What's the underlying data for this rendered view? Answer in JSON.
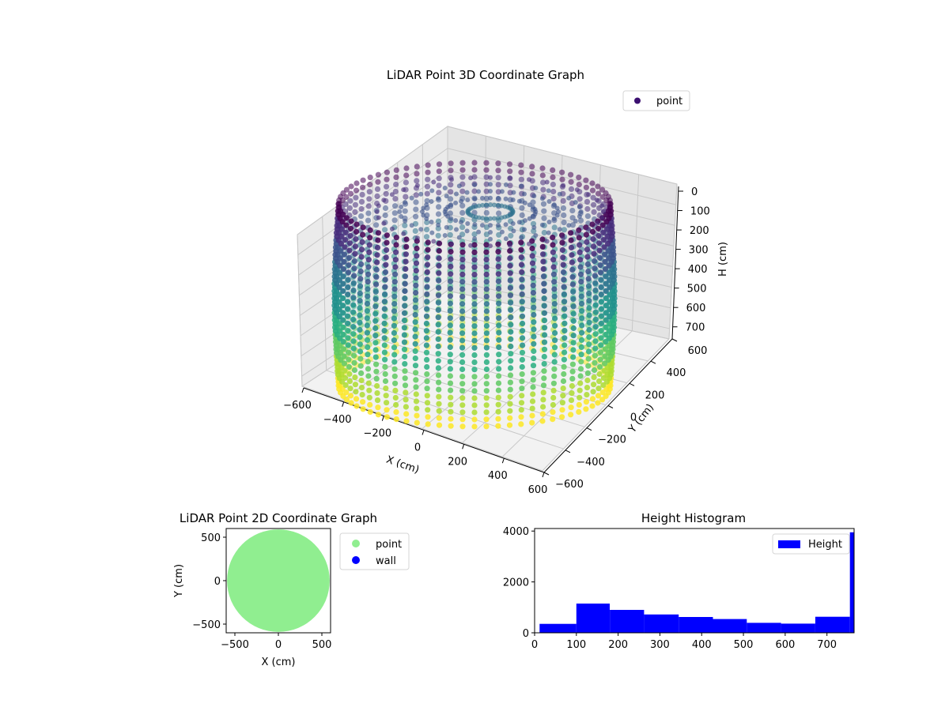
{
  "chart_data": [
    {
      "type": "scatter",
      "title": "LiDAR Point 3D Coordinate Graph",
      "xlabel": "X (cm)",
      "ylabel": "Y (cm)",
      "zlabel": "H (cm)",
      "xlim": [
        -600,
        600
      ],
      "ylim": [
        -600,
        600
      ],
      "zlim": [
        0,
        750
      ],
      "z_inverted": true,
      "x_ticks": [
        "−600",
        "−400",
        "−200",
        "0",
        "200",
        "400",
        "600"
      ],
      "y_ticks": [
        "−600",
        "−400",
        "−200",
        "0",
        "200",
        "400",
        "600"
      ],
      "z_ticks": [
        "0",
        "100",
        "200",
        "300",
        "400",
        "500",
        "600",
        "700"
      ],
      "colormap": "viridis",
      "legend": {
        "position": "top-right",
        "entries": [
          {
            "name": "point",
            "color": "#3b0f70"
          }
        ]
      },
      "series": [
        {
          "name": "point",
          "shape": "cylindrical wall",
          "radius": 600,
          "height_range": [
            0,
            750
          ]
        }
      ]
    },
    {
      "type": "scatter",
      "title": "LiDAR Point 2D Coordinate Graph",
      "xlabel": "X (cm)",
      "ylabel": "Y (cm)",
      "xlim": [
        -600,
        600
      ],
      "ylim": [
        -600,
        600
      ],
      "x_ticks": [
        "−500",
        "0",
        "500"
      ],
      "y_ticks": [
        "−500",
        "0",
        "500"
      ],
      "legend": {
        "position": "outside-right",
        "entries": [
          {
            "name": "point",
            "color": "#90ee90"
          },
          {
            "name": "wall",
            "color": "#0000ff"
          }
        ]
      },
      "series": [
        {
          "name": "point",
          "color": "#90ee90",
          "shape": "filled disc",
          "radius": 590
        },
        {
          "name": "wall",
          "color": "#0000ff",
          "shape": "none visible"
        }
      ]
    },
    {
      "type": "bar",
      "title": "Height Histogram",
      "xlim": [
        0,
        765
      ],
      "ylim": [
        0,
        4100
      ],
      "x_ticks": [
        "0",
        "100",
        "200",
        "300",
        "400",
        "500",
        "600",
        "700"
      ],
      "y_ticks": [
        "0",
        "2000",
        "4000"
      ],
      "legend": {
        "position": "top-right",
        "entries": [
          {
            "name": "Height",
            "color": "#0000ff"
          }
        ]
      },
      "bins": [
        {
          "start": 12,
          "end": 100,
          "count": 350
        },
        {
          "start": 100,
          "end": 180,
          "count": 1150
        },
        {
          "start": 180,
          "end": 262,
          "count": 900
        },
        {
          "start": 262,
          "end": 345,
          "count": 720
        },
        {
          "start": 345,
          "end": 427,
          "count": 620
        },
        {
          "start": 427,
          "end": 508,
          "count": 540
        },
        {
          "start": 508,
          "end": 590,
          "count": 390
        },
        {
          "start": 590,
          "end": 672,
          "count": 360
        },
        {
          "start": 672,
          "end": 755,
          "count": 630
        },
        {
          "start": 755,
          "end": 765,
          "count": 3950
        }
      ],
      "color": "#0000ff"
    }
  ]
}
